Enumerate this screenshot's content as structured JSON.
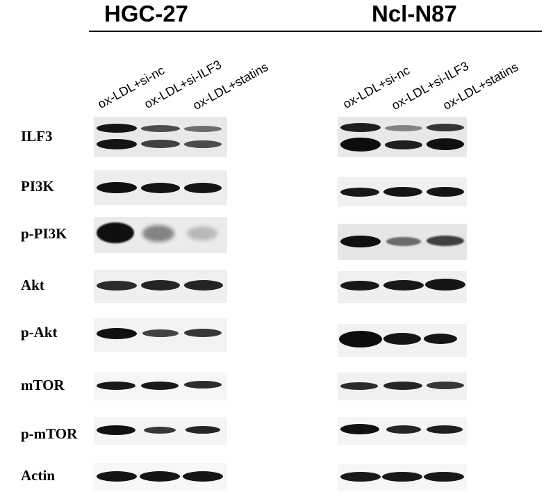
{
  "panels": [
    {
      "title": "HGC-27",
      "lanes": [
        "ox-LDL+si-nc",
        "ox-LDL+si-ILF3",
        "ox-LDL+statins"
      ]
    },
    {
      "title": "Ncl-N87",
      "lanes": [
        "ox-LDL+si-nc",
        "ox-LDL+si-ILF3",
        "ox-LDL+statins"
      ]
    }
  ],
  "rows": [
    {
      "name": "ILF3"
    },
    {
      "name": "PI3K"
    },
    {
      "name": "p-PI3K"
    },
    {
      "name": "Akt"
    },
    {
      "name": "p-Akt"
    },
    {
      "name": "mTOR"
    },
    {
      "name": "p-mTOR"
    },
    {
      "name": "Actin"
    }
  ],
  "colors": {
    "band": "#080808",
    "background_strip": "#ececec",
    "text": "#000000"
  }
}
